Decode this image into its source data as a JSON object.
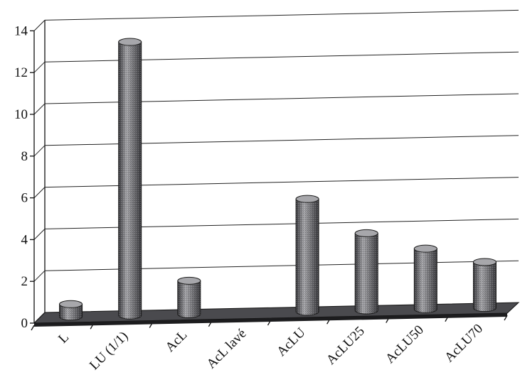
{
  "chart_data": {
    "type": "bar",
    "style": "3d-cylinder",
    "title": "",
    "xlabel": "",
    "ylabel": "",
    "categories": [
      "L",
      "LU (1/1)",
      "AcL",
      "AcL lavé",
      "AcLU",
      "AcLU25",
      "AcLU50",
      "AcLU70"
    ],
    "values": [
      0.6,
      13.1,
      1.6,
      0,
      5.4,
      3.7,
      2.9,
      2.2
    ],
    "ylim": [
      0,
      14
    ],
    "yticks": [
      "0",
      "2",
      "4",
      "6",
      "8",
      "10",
      "12",
      "14"
    ],
    "grid": true,
    "legend": "none",
    "colors": {
      "bar": "#6e6e72",
      "bar_highlight": "#a7a7ab",
      "bar_shadow": "#3a3a3e",
      "floor": "#4a4a4e",
      "floor_front": "#1c1c1e"
    }
  }
}
